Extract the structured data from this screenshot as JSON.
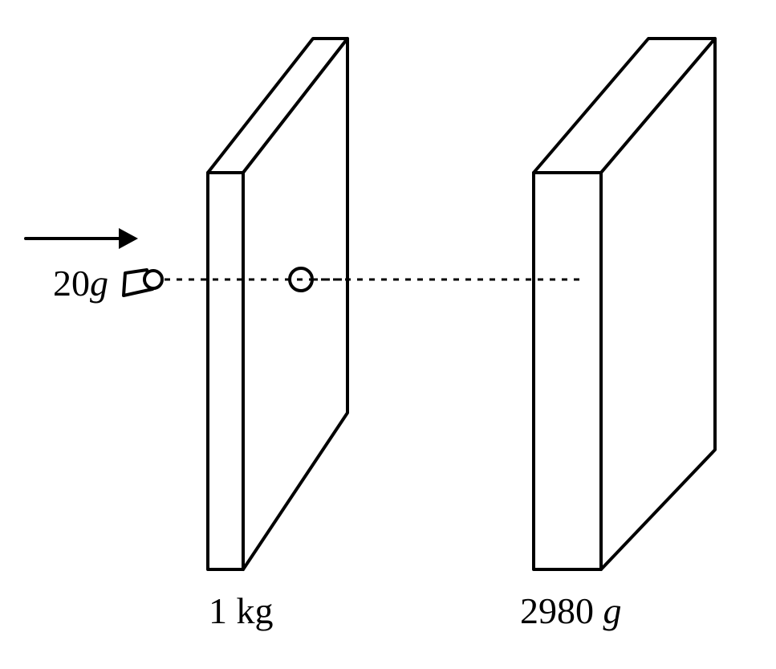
{
  "bullet": {
    "mass_value": "20",
    "mass_unit": "g"
  },
  "block_1": {
    "mass_value": "1",
    "mass_unit": "kg"
  },
  "block_2": {
    "mass_value": "2980",
    "mass_unit": "g"
  },
  "colors": {
    "stroke": "#000000",
    "background": "#ffffff"
  }
}
